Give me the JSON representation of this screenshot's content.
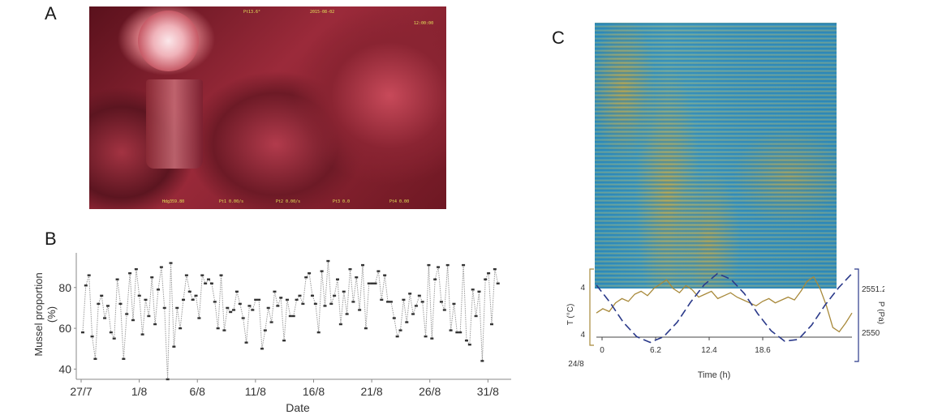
{
  "panels": {
    "a": "A",
    "b": "B",
    "c": "C"
  },
  "panel_a": {
    "camera_overlay": [
      "Pt13.6°",
      "2015-08-02",
      "12:00:00",
      "Hdg359.80",
      "Pt1 0.00/s",
      "Pt2 0.00/s",
      "Pt3 0.0",
      "Pt4 0.00"
    ]
  },
  "chart_data": [
    {
      "type": "scatter",
      "panel": "B",
      "xlabel": "Date",
      "ylabel": "Mussel proportion\n(%)",
      "ylim": [
        35,
        97
      ],
      "yticks": [
        40,
        60,
        80
      ],
      "xticks": [
        {
          "label": "27/7",
          "day": 0
        },
        {
          "label": "1/8",
          "day": 5
        },
        {
          "label": "6/8",
          "day": 10
        },
        {
          "label": "11/8",
          "day": 15
        },
        {
          "label": "16/8",
          "day": 20
        },
        {
          "label": "21/8",
          "day": 25
        },
        {
          "label": "26/8",
          "day": 30
        },
        {
          "label": "31/8",
          "day": 35
        }
      ],
      "xlim": [
        0,
        37
      ],
      "y": [
        58,
        81,
        86,
        56,
        45,
        72,
        76,
        65,
        71,
        58,
        55,
        84,
        72,
        45,
        67,
        87,
        64,
        89,
        76,
        57,
        74,
        66,
        85,
        62,
        79,
        90,
        70,
        35,
        92,
        51,
        70,
        60,
        74,
        86,
        78,
        74,
        76,
        65,
        86,
        82,
        84,
        82,
        73,
        60,
        86,
        59,
        70,
        68,
        69,
        78,
        72,
        65,
        53,
        71,
        69,
        74,
        74,
        50,
        59,
        70,
        63,
        78,
        71,
        75,
        54,
        74,
        66,
        66,
        74,
        76,
        72,
        85,
        87,
        76,
        72,
        58,
        88,
        71,
        93,
        72,
        76,
        84,
        62,
        78,
        67,
        89,
        73,
        85,
        69,
        91,
        60,
        82,
        82,
        82,
        88,
        74,
        86,
        73,
        73,
        65,
        56,
        59,
        74,
        63,
        77,
        67,
        71,
        76,
        73,
        56,
        91,
        55,
        84,
        90,
        73,
        69,
        91,
        59,
        72,
        58,
        58,
        91,
        54,
        52,
        79,
        66,
        78,
        44,
        84,
        87,
        62,
        89,
        82
      ]
    },
    {
      "type": "heatmap",
      "panel": "C",
      "xlabel": "Time (h)",
      "xticks": [
        "0",
        "6.2",
        "12.4",
        "18.6"
      ],
      "x_start_label": "24/8",
      "left_axis_label": "T (°C)",
      "left_ticks": [
        "4",
        "4"
      ],
      "right_axis_label": "P (Pa)",
      "right_ticks": [
        "2551.2",
        "2550"
      ],
      "series": [
        {
          "name": "T",
          "color": "#a8893a",
          "y": [
            4.05,
            4.08,
            4.06,
            4.12,
            4.15,
            4.13,
            4.18,
            4.2,
            4.17,
            4.22,
            4.25,
            4.28,
            4.22,
            4.19,
            4.24,
            4.21,
            4.16,
            4.18,
            4.2,
            4.15,
            4.17,
            4.19,
            4.16,
            4.14,
            4.12,
            4.1,
            4.13,
            4.15,
            4.12,
            4.14,
            4.16,
            4.14,
            4.2,
            4.27,
            4.3,
            4.22,
            4.1,
            3.95,
            3.92,
            3.98,
            4.05
          ]
        },
        {
          "name": "P",
          "color": "#2b3a8a",
          "y": [
            2551.0,
            2550.7,
            2550.35,
            2550.1,
            2550.0,
            2550.1,
            2550.35,
            2550.7,
            2551.0,
            2551.2,
            2551.1,
            2550.85,
            2550.5,
            2550.2,
            2550.02,
            2550.05,
            2550.3,
            2550.65,
            2550.95,
            2551.2
          ]
        }
      ]
    }
  ]
}
